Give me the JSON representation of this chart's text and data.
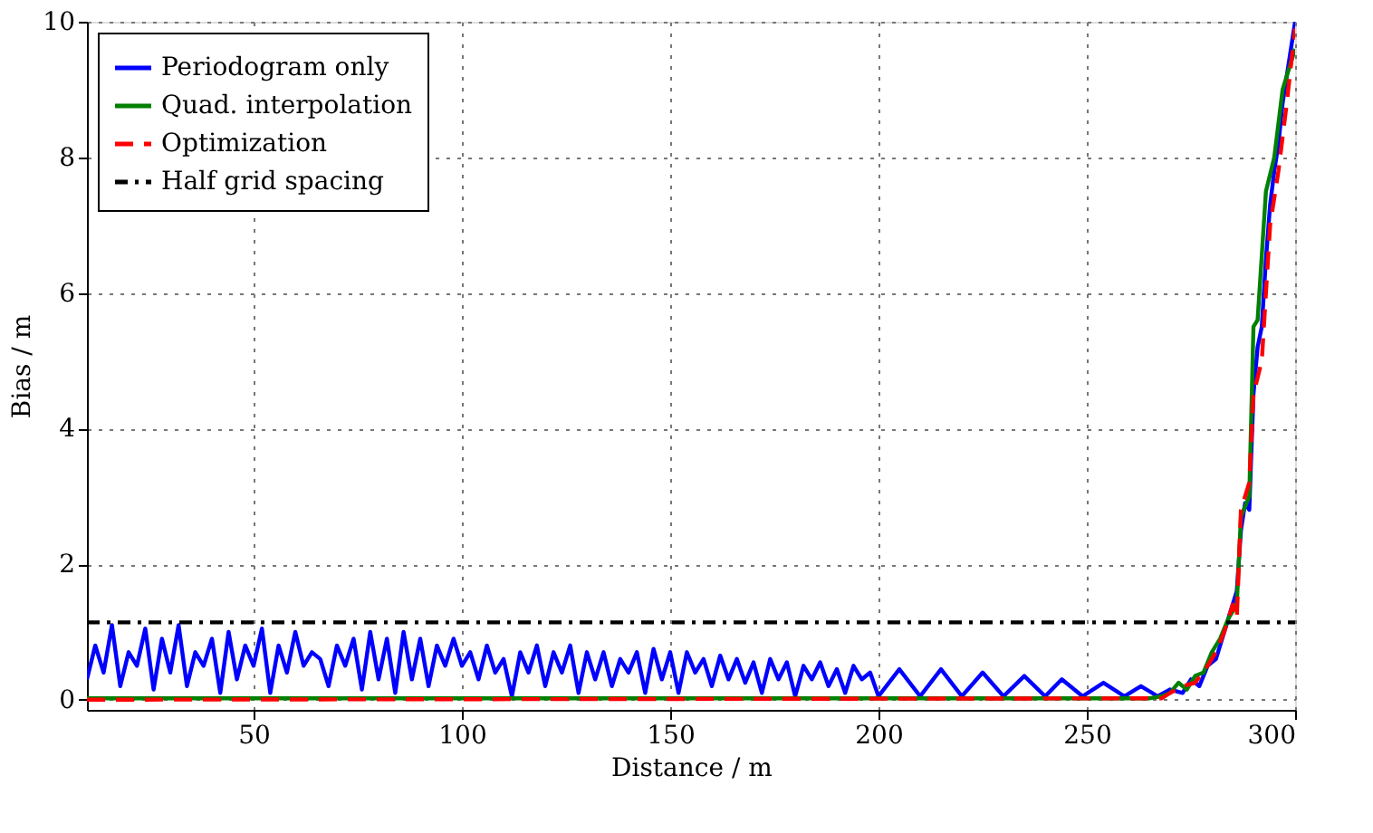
{
  "chart_data": {
    "type": "line",
    "xlabel": "Distance / m",
    "ylabel": "Bias / m",
    "xlim": [
      10,
      300
    ],
    "ylim": [
      -0.15,
      10
    ],
    "xticks": [
      50,
      100,
      150,
      200,
      250,
      300
    ],
    "yticks": [
      0,
      2,
      4,
      6,
      8,
      10
    ],
    "grid": true,
    "legend": "top left",
    "series": [
      {
        "name": "Periodogram only",
        "color": "#0000ff",
        "line_style": "solid",
        "x": [
          10,
          12,
          14,
          16,
          18,
          20,
          22,
          24,
          26,
          28,
          30,
          32,
          34,
          36,
          38,
          40,
          42,
          44,
          46,
          48,
          50,
          52,
          54,
          56,
          58,
          60,
          62,
          64,
          66,
          68,
          70,
          72,
          74,
          76,
          78,
          80,
          82,
          84,
          86,
          88,
          90,
          92,
          94,
          96,
          98,
          100,
          102,
          104,
          106,
          108,
          110,
          112,
          114,
          116,
          118,
          120,
          122,
          124,
          126,
          128,
          130,
          132,
          134,
          136,
          138,
          140,
          142,
          144,
          146,
          148,
          150,
          152,
          154,
          156,
          158,
          160,
          162,
          164,
          166,
          168,
          170,
          172,
          174,
          176,
          178,
          180,
          182,
          184,
          186,
          188,
          190,
          192,
          194,
          196,
          198,
          200,
          205,
          210,
          215,
          220,
          225,
          230,
          235,
          240,
          244,
          249,
          254,
          259,
          263,
          267,
          270,
          273,
          275,
          277,
          279,
          281,
          283,
          285,
          286,
          287,
          288,
          289,
          290,
          291,
          292,
          293,
          294,
          295,
          296,
          297,
          298,
          299,
          300
        ],
        "values": [
          0.3,
          0.8,
          0.4,
          1.1,
          0.2,
          0.7,
          0.5,
          1.05,
          0.15,
          0.9,
          0.4,
          1.1,
          0.2,
          0.7,
          0.5,
          0.9,
          0.1,
          1.0,
          0.3,
          0.8,
          0.5,
          1.05,
          0.1,
          0.8,
          0.4,
          1.0,
          0.5,
          0.7,
          0.6,
          0.2,
          0.8,
          0.5,
          0.9,
          0.15,
          1.0,
          0.3,
          0.9,
          0.1,
          1.0,
          0.3,
          0.9,
          0.2,
          0.8,
          0.5,
          0.9,
          0.5,
          0.7,
          0.3,
          0.8,
          0.4,
          0.6,
          0.05,
          0.7,
          0.4,
          0.8,
          0.2,
          0.7,
          0.4,
          0.8,
          0.1,
          0.7,
          0.3,
          0.7,
          0.2,
          0.6,
          0.4,
          0.7,
          0.1,
          0.75,
          0.3,
          0.7,
          0.1,
          0.7,
          0.4,
          0.6,
          0.2,
          0.65,
          0.3,
          0.6,
          0.25,
          0.55,
          0.1,
          0.6,
          0.3,
          0.55,
          0.05,
          0.5,
          0.3,
          0.55,
          0.2,
          0.45,
          0.1,
          0.5,
          0.3,
          0.4,
          0.05,
          0.45,
          0.05,
          0.45,
          0.05,
          0.4,
          0.05,
          0.35,
          0.05,
          0.3,
          0.05,
          0.25,
          0.05,
          0.2,
          0.05,
          0.15,
          0.1,
          0.3,
          0.2,
          0.5,
          0.6,
          1.0,
          1.4,
          1.6,
          2.5,
          2.9,
          2.8,
          4.5,
          5.2,
          5.5,
          6.5,
          7.3,
          7.8,
          8.2,
          8.8,
          9.2,
          9.6,
          10
        ]
      },
      {
        "name": "Quad. interpolation",
        "color": "#008000",
        "line_style": "solid",
        "x": [
          10,
          265,
          268,
          270,
          272,
          274,
          276,
          278,
          280,
          282,
          284,
          286,
          287,
          289,
          290,
          291,
          293,
          295,
          297,
          300
        ],
        "values": [
          0.02,
          0.02,
          0.05,
          0.1,
          0.25,
          0.15,
          0.35,
          0.4,
          0.7,
          0.9,
          1.2,
          1.4,
          2.7,
          3.0,
          5.5,
          5.6,
          7.5,
          8.0,
          9.0,
          9.6
        ]
      },
      {
        "name": "Optimization",
        "color": "#ff0000",
        "line_style": "dashed",
        "x": [
          10,
          265,
          268,
          270,
          273,
          276,
          279,
          281,
          283,
          285,
          286,
          287,
          289,
          290,
          292,
          294,
          296,
          298,
          300
        ],
        "values": [
          0,
          0.02,
          0.02,
          0.1,
          0.2,
          0.25,
          0.5,
          0.7,
          1.0,
          1.4,
          1.2,
          2.8,
          3.2,
          4.5,
          5.0,
          7.0,
          7.8,
          8.8,
          9.9
        ]
      },
      {
        "name": "Half grid spacing",
        "color": "#000000",
        "line_style": "dashdot",
        "x": [
          10,
          300
        ],
        "values": [
          1.14,
          1.14
        ]
      }
    ]
  }
}
